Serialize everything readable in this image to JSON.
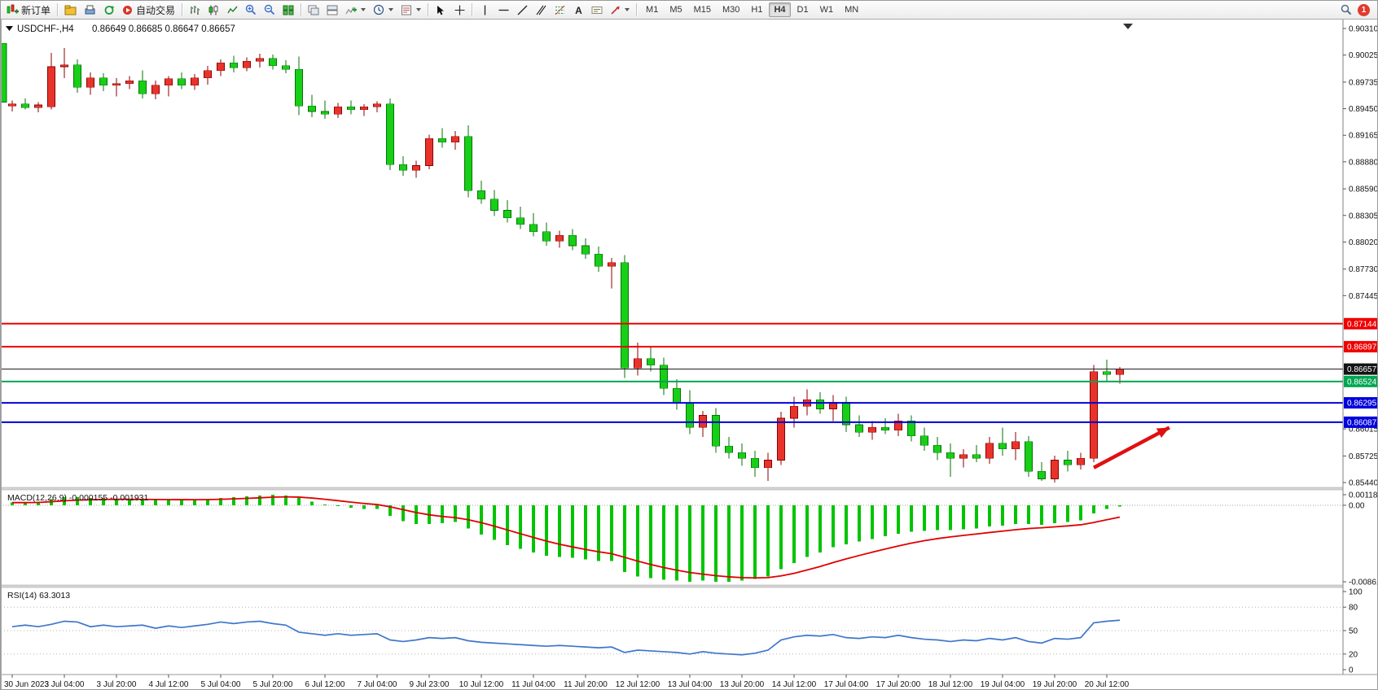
{
  "toolbar": {
    "new_order_label": "新订单",
    "autotrading_label": "自动交易",
    "timeframes": [
      "M1",
      "M5",
      "M15",
      "M30",
      "H1",
      "H4",
      "D1",
      "W1",
      "MN"
    ],
    "active_timeframe": "H4",
    "notification_count": "1",
    "icon_names": [
      "new-order",
      "chart-profile",
      "print-preview",
      "refresh",
      "autotrading",
      "bar-chart",
      "candlestick-chart",
      "line-chart",
      "zoom-in",
      "zoom-out",
      "tile-windows",
      "cascade-windows",
      "arrange-windows",
      "indicators",
      "periods",
      "templates",
      "cursor",
      "crosshair",
      "vertical-line",
      "horizontal-line",
      "trendline",
      "equidistant-channel",
      "fibonacci",
      "text",
      "text-label",
      "arrows",
      "search",
      "notifications"
    ]
  },
  "chart": {
    "title": "USDCHF-,H4",
    "ohlc": "0.86649 0.86685 0.86647 0.86657",
    "price_axis_labels": [
      "0.90310",
      "0.90025",
      "0.89735",
      "0.89450",
      "0.89165",
      "0.88880",
      "0.88590",
      "0.88305",
      "0.88020",
      "0.87730",
      "0.87445",
      "0.86015",
      "0.85725",
      "0.85440"
    ],
    "hlines": [
      {
        "label": "0.87144",
        "price": 0.87144,
        "color": "#f00000",
        "text_color": "#ffffff",
        "width": 2
      },
      {
        "label": "0.86897",
        "price": 0.86897,
        "color": "#f00000",
        "text_color": "#ffffff",
        "width": 2
      },
      {
        "label": "0.86657",
        "price": 0.86657,
        "color": "#141414",
        "text_color": "#ffffff",
        "width": 1
      },
      {
        "label": "0.86524",
        "price": 0.86524,
        "color": "#00a651",
        "text_color": "#ffffff",
        "width": 2
      },
      {
        "label": "0.86295",
        "price": 0.86295,
        "color": "#0000dd",
        "text_color": "#ffffff",
        "width": 2
      },
      {
        "label": "0.86087",
        "price": 0.86087,
        "color": "#0000dd",
        "text_color": "#ffffff",
        "width": 2
      }
    ]
  },
  "macd": {
    "label": "MACD(12,26,9)",
    "values_text": "-0.000155 -0.001931",
    "axis_labels": [
      "0.001187",
      "0.00",
      "-0.008615"
    ]
  },
  "rsi": {
    "label": "RSI(14)",
    "value_text": "63.3013",
    "axis_labels": [
      "100",
      "80",
      "50",
      "20",
      "0"
    ]
  },
  "time_axis_labels": [
    "30 Jun 2023",
    "3 Jul 04:00",
    "3 Jul 20:00",
    "4 Jul 12:00",
    "5 Jul 04:00",
    "5 Jul 20:00",
    "6 Jul 12:00",
    "7 Jul 04:00",
    "9 Jul 23:00",
    "10 Jul 12:00",
    "11 Jul 04:00",
    "11 Jul 20:00",
    "12 Jul 12:00",
    "13 Jul 04:00",
    "13 Jul 20:00",
    "14 Jul 12:00",
    "17 Jul 04:00",
    "17 Jul 20:00",
    "18 Jul 12:00",
    "19 Jul 04:00",
    "19 Jul 20:00",
    "20 Jul 12:00"
  ],
  "chart_data": [
    {
      "type": "candlestick",
      "title": "USDCHF-,H4",
      "ylim": [
        0.85388,
        0.9038
      ],
      "up_color": "#e8332b",
      "down_color": "#17cf17",
      "label_step": 4,
      "x_labels": [
        "30 Jun 2023",
        "3 Jul 04:00",
        "3 Jul 20:00",
        "4 Jul 12:00",
        "5 Jul 04:00",
        "5 Jul 20:00",
        "6 Jul 12:00",
        "7 Jul 04:00",
        "9 Jul 23:00",
        "10 Jul 12:00",
        "11 Jul 04:00",
        "11 Jul 20:00",
        "12 Jul 12:00",
        "13 Jul 04:00",
        "13 Jul 20:00",
        "14 Jul 12:00",
        "17 Jul 04:00",
        "17 Jul 20:00",
        "18 Jul 12:00",
        "19 Jul 04:00",
        "19 Jul 20:00",
        "20 Jul 12:00"
      ],
      "candles": [
        [
          0.8948,
          0.8954,
          0.8942,
          0.895
        ],
        [
          0.895,
          0.8956,
          0.8944,
          0.8946
        ],
        [
          0.8946,
          0.8952,
          0.8941,
          0.8949
        ],
        [
          0.8947,
          0.9005,
          0.8944,
          0.899
        ],
        [
          0.899,
          0.901,
          0.8978,
          0.8992
        ],
        [
          0.8992,
          0.8998,
          0.8962,
          0.8968
        ],
        [
          0.8968,
          0.8984,
          0.896,
          0.8978
        ],
        [
          0.8978,
          0.8983,
          0.8964,
          0.897
        ],
        [
          0.897,
          0.8978,
          0.8958,
          0.8972
        ],
        [
          0.8972,
          0.898,
          0.8966,
          0.8975
        ],
        [
          0.8975,
          0.8986,
          0.8956,
          0.8961
        ],
        [
          0.8961,
          0.8975,
          0.8955,
          0.897
        ],
        [
          0.897,
          0.898,
          0.8958,
          0.8977
        ],
        [
          0.8977,
          0.8984,
          0.8966,
          0.897
        ],
        [
          0.897,
          0.8982,
          0.8965,
          0.8978
        ],
        [
          0.8978,
          0.8991,
          0.8971,
          0.8986
        ],
        [
          0.8986,
          0.8998,
          0.898,
          0.8994
        ],
        [
          0.8994,
          0.9002,
          0.8984,
          0.8989
        ],
        [
          0.8989,
          0.9,
          0.8985,
          0.8996
        ],
        [
          0.8996,
          0.9004,
          0.8989,
          0.8999
        ],
        [
          0.8999,
          0.9003,
          0.8987,
          0.8991
        ],
        [
          0.8991,
          0.8997,
          0.8983,
          0.8987
        ],
        [
          0.8987,
          0.9001,
          0.8938,
          0.8948
        ],
        [
          0.8948,
          0.896,
          0.8936,
          0.8942
        ],
        [
          0.8942,
          0.8954,
          0.8934,
          0.8939
        ],
        [
          0.8939,
          0.8951,
          0.8935,
          0.8947
        ],
        [
          0.8947,
          0.8954,
          0.8939,
          0.8944
        ],
        [
          0.8944,
          0.895,
          0.8937,
          0.8947
        ],
        [
          0.8947,
          0.8953,
          0.8941,
          0.895
        ],
        [
          0.895,
          0.8956,
          0.8879,
          0.8885
        ],
        [
          0.8885,
          0.8894,
          0.8873,
          0.8879
        ],
        [
          0.8879,
          0.8889,
          0.8871,
          0.8884
        ],
        [
          0.8884,
          0.8917,
          0.888,
          0.8913
        ],
        [
          0.8913,
          0.8924,
          0.8903,
          0.8909
        ],
        [
          0.8909,
          0.8921,
          0.8901,
          0.8915
        ],
        [
          0.8915,
          0.8927,
          0.885,
          0.8857
        ],
        [
          0.8857,
          0.8868,
          0.8843,
          0.8848
        ],
        [
          0.8848,
          0.8858,
          0.883,
          0.8836
        ],
        [
          0.8836,
          0.8847,
          0.8823,
          0.8828
        ],
        [
          0.8828,
          0.884,
          0.8816,
          0.8821
        ],
        [
          0.8821,
          0.8833,
          0.8808,
          0.8813
        ],
        [
          0.8813,
          0.8823,
          0.8798,
          0.8803
        ],
        [
          0.8803,
          0.8814,
          0.8796,
          0.8809
        ],
        [
          0.8809,
          0.8816,
          0.8793,
          0.8798
        ],
        [
          0.8798,
          0.8806,
          0.8784,
          0.8789
        ],
        [
          0.8789,
          0.8797,
          0.877,
          0.8776
        ],
        [
          0.8776,
          0.8785,
          0.8752,
          0.878
        ],
        [
          0.878,
          0.8788,
          0.8656,
          0.8667
        ],
        [
          0.8667,
          0.8694,
          0.8659,
          0.8677
        ],
        [
          0.8677,
          0.8689,
          0.8663,
          0.867
        ],
        [
          0.867,
          0.8678,
          0.8638,
          0.8645
        ],
        [
          0.8645,
          0.8655,
          0.8622,
          0.8629
        ],
        [
          0.8629,
          0.8643,
          0.8596,
          0.8603
        ],
        [
          0.8603,
          0.8621,
          0.8593,
          0.8616
        ],
        [
          0.8616,
          0.8624,
          0.8576,
          0.8583
        ],
        [
          0.8583,
          0.8593,
          0.857,
          0.8576
        ],
        [
          0.8576,
          0.8586,
          0.8562,
          0.857
        ],
        [
          0.857,
          0.8578,
          0.855,
          0.856
        ],
        [
          0.856,
          0.8576,
          0.8546,
          0.8568
        ],
        [
          0.8568,
          0.862,
          0.8563,
          0.8613
        ],
        [
          0.8613,
          0.8636,
          0.8603,
          0.8626
        ],
        [
          0.8626,
          0.8644,
          0.8616,
          0.8633
        ],
        [
          0.8633,
          0.8641,
          0.8618,
          0.8623
        ],
        [
          0.8623,
          0.8638,
          0.861,
          0.863
        ],
        [
          0.863,
          0.8636,
          0.8598,
          0.8606
        ],
        [
          0.8606,
          0.8616,
          0.8593,
          0.8598
        ],
        [
          0.8598,
          0.861,
          0.859,
          0.8603
        ],
        [
          0.8603,
          0.8613,
          0.8596,
          0.86
        ],
        [
          0.86,
          0.8618,
          0.8594,
          0.861
        ],
        [
          0.861,
          0.8616,
          0.8588,
          0.8594
        ],
        [
          0.8594,
          0.8603,
          0.8578,
          0.8584
        ],
        [
          0.8584,
          0.8593,
          0.8568,
          0.8576
        ],
        [
          0.8576,
          0.8586,
          0.855,
          0.857
        ],
        [
          0.857,
          0.858,
          0.856,
          0.8574
        ],
        [
          0.8574,
          0.8584,
          0.8566,
          0.857
        ],
        [
          0.857,
          0.8593,
          0.8564,
          0.8586
        ],
        [
          0.8586,
          0.8603,
          0.8573,
          0.858
        ],
        [
          0.858,
          0.8598,
          0.8568,
          0.8588
        ],
        [
          0.8588,
          0.8594,
          0.855,
          0.8556
        ],
        [
          0.8556,
          0.8566,
          0.8546,
          0.8548
        ],
        [
          0.8548,
          0.8573,
          0.8544,
          0.8568
        ],
        [
          0.8568,
          0.8578,
          0.8556,
          0.8563
        ],
        [
          0.8563,
          0.8576,
          0.8558,
          0.857
        ],
        [
          0.857,
          0.867,
          0.8566,
          0.8663
        ],
        [
          0.8663,
          0.8676,
          0.8653,
          0.866
        ],
        [
          0.866,
          0.8668,
          0.865,
          0.86657
        ]
      ]
    },
    {
      "type": "bar",
      "title": "MACD(12,26,9)",
      "ylim": [
        -0.008615,
        0.001187
      ],
      "histogram_color": "#00c400",
      "signal_color": "#e00000",
      "signal_period": 9,
      "values": [
        0.0003,
        0.0003,
        0.0004,
        0.0007,
        0.0009,
        0.0009,
        0.0008,
        0.0008,
        0.0007,
        0.0007,
        0.0006,
        0.0006,
        0.0006,
        0.0006,
        0.0006,
        0.0007,
        0.0008,
        0.0009,
        0.001,
        0.0011,
        0.0012,
        0.0011,
        0.0008,
        0.0004,
        0.0001,
        -0.0001,
        -0.0003,
        -0.0004,
        -0.0004,
        -0.0012,
        -0.0018,
        -0.0021,
        -0.0021,
        -0.002,
        -0.0019,
        -0.0026,
        -0.0033,
        -0.0039,
        -0.0045,
        -0.0049,
        -0.0053,
        -0.0057,
        -0.0058,
        -0.0059,
        -0.0061,
        -0.0063,
        -0.0063,
        -0.0075,
        -0.008,
        -0.0082,
        -0.0084,
        -0.0085,
        -0.0086,
        -0.0085,
        -0.0086,
        -0.0086,
        -0.0085,
        -0.0083,
        -0.008,
        -0.0072,
        -0.0065,
        -0.0058,
        -0.0053,
        -0.0047,
        -0.0044,
        -0.0041,
        -0.0038,
        -0.0035,
        -0.0032,
        -0.003,
        -0.0029,
        -0.0028,
        -0.0028,
        -0.0027,
        -0.0026,
        -0.0024,
        -0.0023,
        -0.0021,
        -0.0021,
        -0.0022,
        -0.002,
        -0.0019,
        -0.0017,
        -0.0009,
        -0.0004,
        -0.000155
      ]
    },
    {
      "type": "line",
      "title": "RSI(14)",
      "ylim": [
        0,
        100
      ],
      "levels": [
        80,
        50,
        20
      ],
      "line_color": "#3e76cc",
      "values": [
        55,
        57,
        55,
        58,
        62,
        61,
        55,
        57,
        55,
        56,
        57,
        53,
        56,
        54,
        56,
        58,
        61,
        59,
        61,
        62,
        59,
        57,
        48,
        46,
        44,
        46,
        44,
        45,
        46,
        38,
        36,
        38,
        41,
        40,
        41,
        37,
        35,
        34,
        33,
        32,
        31,
        30,
        31,
        30,
        29,
        28,
        29,
        22,
        25,
        24,
        23,
        22,
        20,
        23,
        21,
        20,
        19,
        21,
        25,
        38,
        42,
        44,
        43,
        45,
        41,
        40,
        42,
        41,
        44,
        41,
        39,
        38,
        36,
        38,
        37,
        40,
        38,
        41,
        36,
        34,
        40,
        39,
        41,
        60,
        62,
        63.3
      ]
    }
  ],
  "annotations": {
    "arrow": {
      "from_index": 83,
      "from_price": 0.856,
      "to_index": 88.8,
      "to_price": 0.8603,
      "color": "#e01010"
    }
  },
  "partial_candle_left": {
    "top_price": 0.9015,
    "bottom_price": 0.8952
  }
}
